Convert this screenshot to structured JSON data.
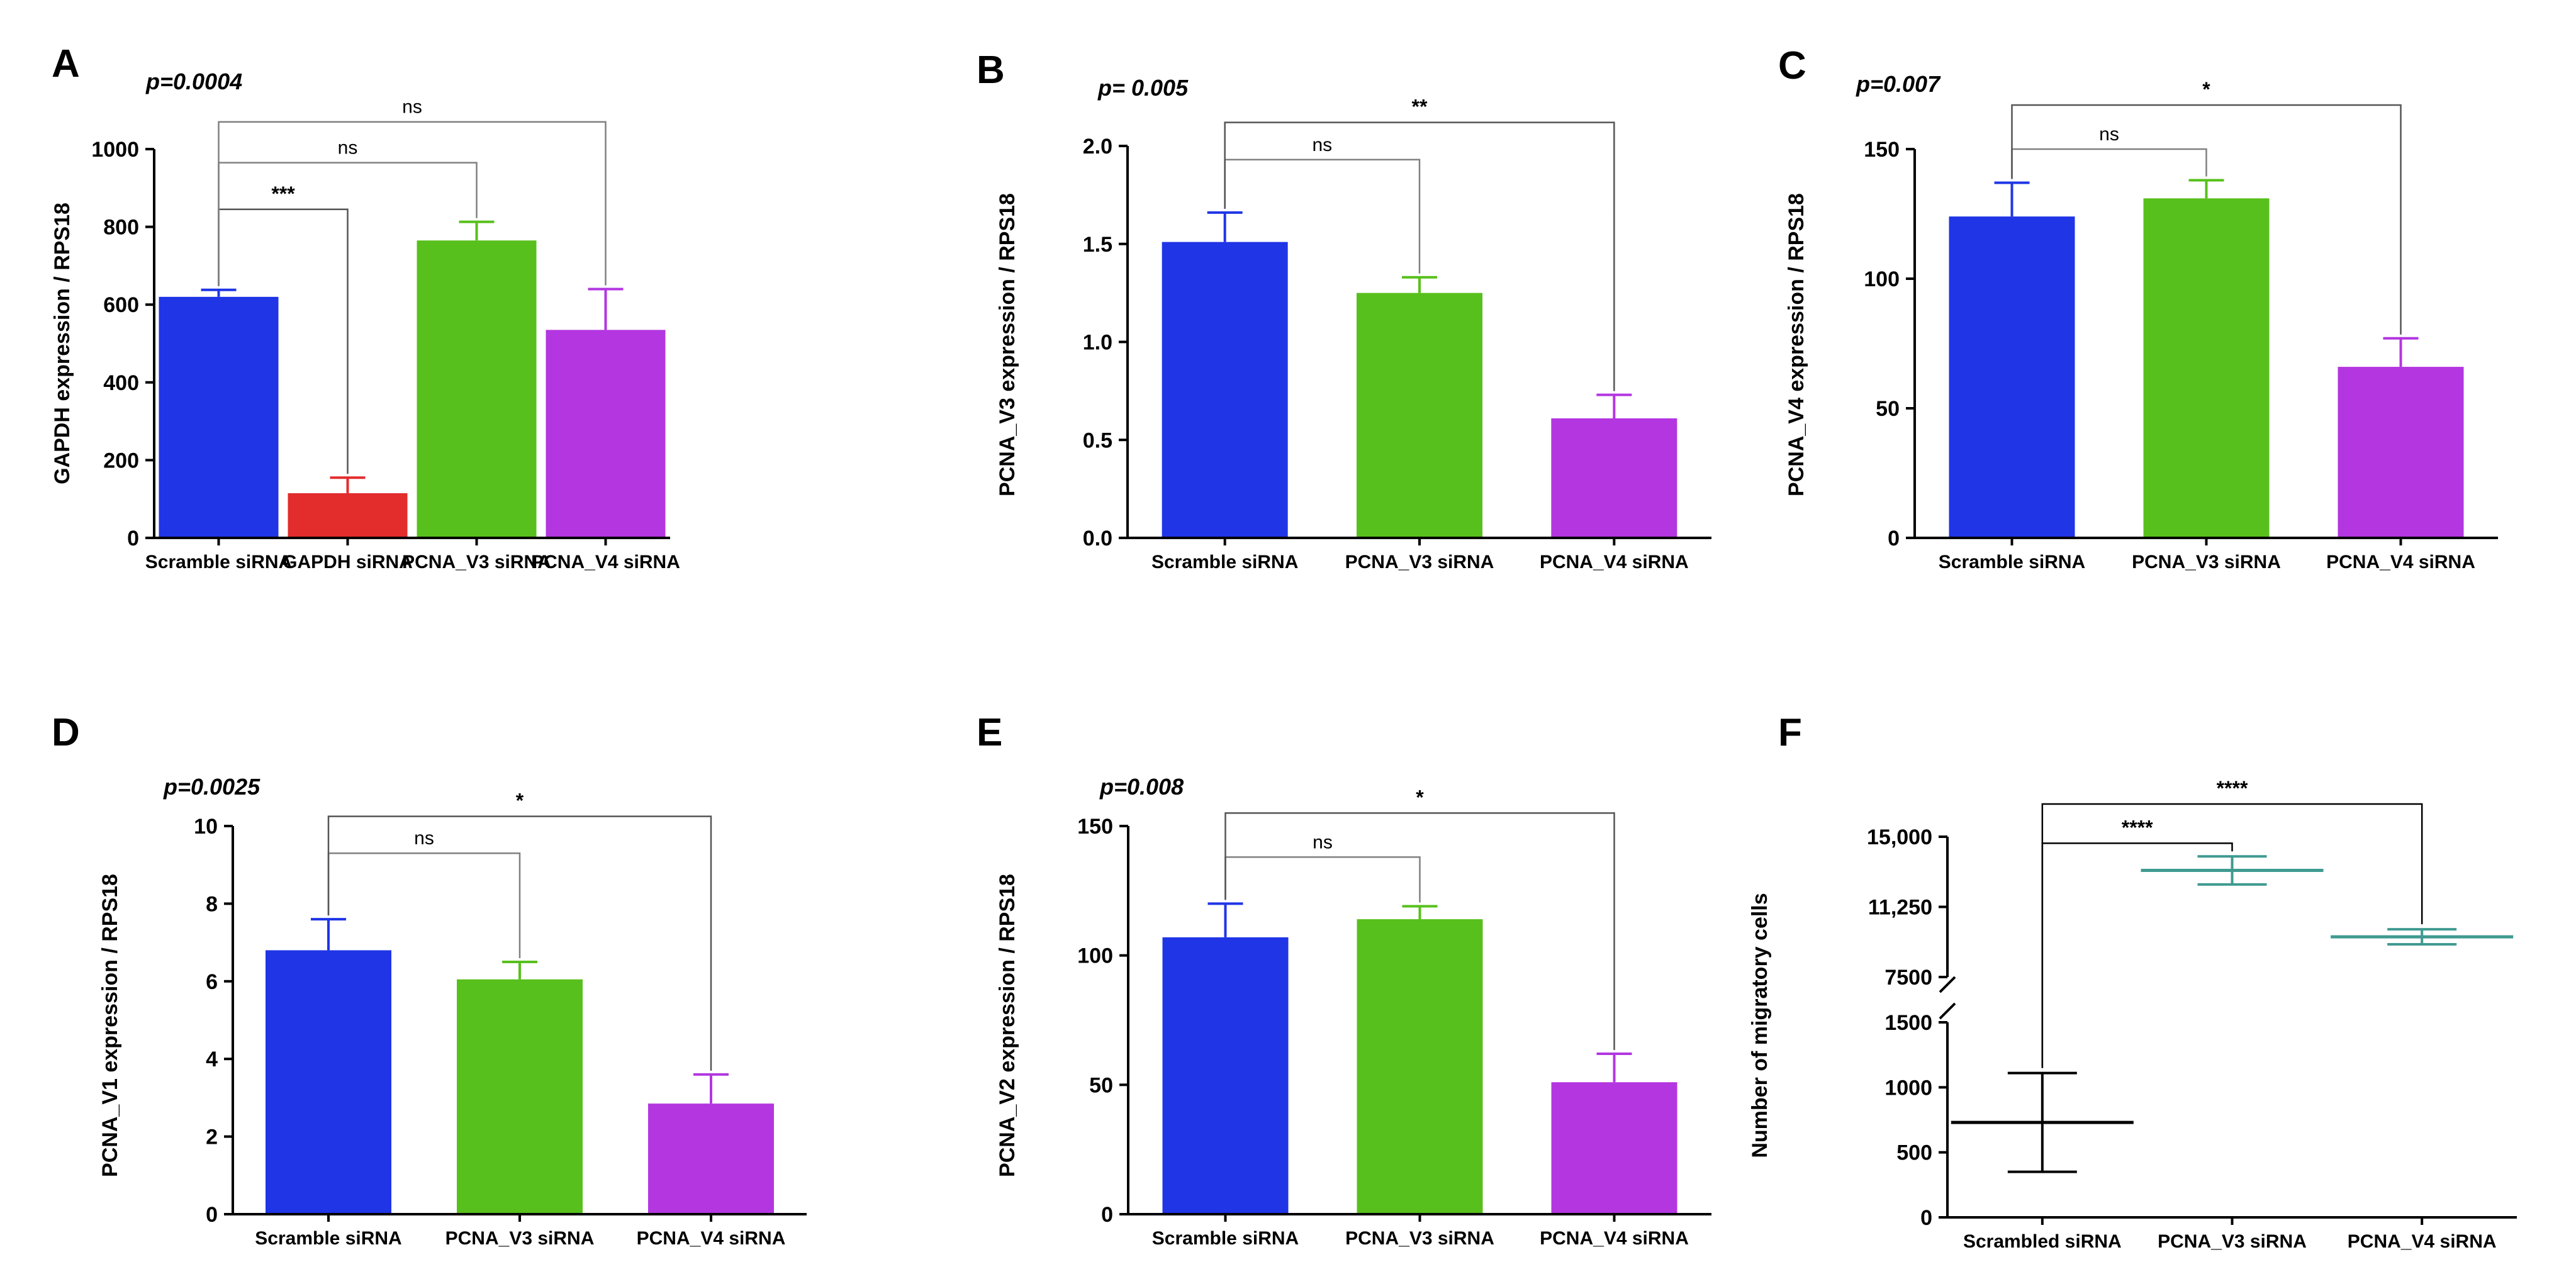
{
  "figure": {
    "description_free": true
  },
  "colors": {
    "blue": "#1f35e6",
    "red": "#e32c2c",
    "green": "#58c01c",
    "purple": "#b336e0",
    "teal": "#3f9a90",
    "axis": "#000000",
    "bracket": "#9a9a9a"
  },
  "chart_data": [
    {
      "id": "A",
      "type": "bar",
      "letter": "A",
      "pvalue": "p=0.0004",
      "ylabel": "GAPDH expression / RPS18",
      "categories": [
        "Scramble siRNA",
        "GAPDH siRNA",
        "PCNA_V3 siRNA",
        "PCNA_V4 siRNA"
      ],
      "values": [
        620,
        115,
        765,
        535
      ],
      "errors": [
        18,
        40,
        48,
        105
      ],
      "bar_colors": [
        "blue",
        "red",
        "green",
        "purple"
      ],
      "ylim": [
        0,
        1000
      ],
      "yticks": [
        0,
        200,
        400,
        600,
        800,
        1000
      ],
      "ytick_labels": [
        "0",
        "200",
        "400",
        "600",
        "800",
        "1000"
      ],
      "comparisons": [
        {
          "from": 0,
          "to": 1,
          "y": 845,
          "label": "***"
        },
        {
          "from": 0,
          "to": 2,
          "y": 965,
          "label": "ns"
        },
        {
          "from": 0,
          "to": 3,
          "y": 1070,
          "label": "ns"
        }
      ]
    },
    {
      "id": "B",
      "type": "bar",
      "letter": "B",
      "pvalue": "p= 0.005",
      "ylabel": "PCNA_V3 expression / RPS18",
      "categories": [
        "Scramble siRNA",
        "PCNA_V3 siRNA",
        "PCNA_V4 siRNA"
      ],
      "values": [
        1.51,
        1.25,
        0.61
      ],
      "errors": [
        0.15,
        0.08,
        0.12
      ],
      "bar_colors": [
        "blue",
        "green",
        "purple"
      ],
      "ylim": [
        0,
        2.0
      ],
      "yticks": [
        0,
        0.5,
        1.0,
        1.5,
        2.0
      ],
      "ytick_labels": [
        "0.0",
        "0.5",
        "1.0",
        "1.5",
        "2.0"
      ],
      "comparisons": [
        {
          "from": 0,
          "to": 1,
          "y": 1.93,
          "label": "ns"
        },
        {
          "from": 0,
          "to": 2,
          "y": 2.12,
          "label": "**"
        }
      ]
    },
    {
      "id": "C",
      "type": "bar",
      "letter": "C",
      "pvalue": "p=0.007",
      "ylabel": "PCNA_V4 expression / RPS18",
      "categories": [
        "Scramble siRNA",
        "PCNA_V3 siRNA",
        "PCNA_V4 siRNA"
      ],
      "values": [
        124,
        131,
        66
      ],
      "errors": [
        13,
        7,
        11
      ],
      "bar_colors": [
        "blue",
        "green",
        "purple"
      ],
      "ylim": [
        0,
        150
      ],
      "yticks": [
        0,
        50,
        100,
        150
      ],
      "ytick_labels": [
        "0",
        "50",
        "100",
        "150"
      ],
      "comparisons": [
        {
          "from": 0,
          "to": 1,
          "y": 150,
          "label": "ns"
        },
        {
          "from": 0,
          "to": 2,
          "y": 167,
          "label": "*"
        }
      ]
    },
    {
      "id": "D",
      "type": "bar",
      "letter": "D",
      "pvalue": "p=0.0025",
      "ylabel": "PCNA_V1 expression / RPS18",
      "categories": [
        "Scramble siRNA",
        "PCNA_V3 siRNA",
        "PCNA_V4 siRNA"
      ],
      "values": [
        6.8,
        6.05,
        2.85
      ],
      "errors": [
        0.8,
        0.45,
        0.75
      ],
      "bar_colors": [
        "blue",
        "green",
        "purple"
      ],
      "ylim": [
        0,
        10
      ],
      "yticks": [
        0,
        2,
        4,
        6,
        8,
        10
      ],
      "ytick_labels": [
        "0",
        "2",
        "4",
        "6",
        "8",
        "10"
      ],
      "comparisons": [
        {
          "from": 0,
          "to": 1,
          "y": 9.3,
          "label": "ns"
        },
        {
          "from": 0,
          "to": 2,
          "y": 10.25,
          "label": "*"
        }
      ]
    },
    {
      "id": "E",
      "type": "bar",
      "letter": "E",
      "pvalue": "p=0.008",
      "ylabel": "PCNA_V2 expression / RPS18",
      "categories": [
        "Scramble siRNA",
        "PCNA_V3 siRNA",
        "PCNA_V4 siRNA"
      ],
      "values": [
        107,
        114,
        51
      ],
      "errors": [
        13,
        5,
        11
      ],
      "bar_colors": [
        "blue",
        "green",
        "purple"
      ],
      "ylim": [
        0,
        150
      ],
      "yticks": [
        0,
        50,
        100,
        150
      ],
      "ytick_labels": [
        "0",
        "50",
        "100",
        "150"
      ],
      "comparisons": [
        {
          "from": 0,
          "to": 1,
          "y": 138,
          "label": "ns"
        },
        {
          "from": 0,
          "to": 2,
          "y": 155,
          "label": "*"
        }
      ]
    },
    {
      "id": "F",
      "type": "scatter",
      "letter": "F",
      "ylabel": "Number of migratory cells",
      "categories": [
        "Scrambled siRNA",
        "PCNA_V3 siRNA",
        "PCNA_V4 siRNA"
      ],
      "means": [
        730,
        13200,
        9650
      ],
      "lower": [
        350,
        12450,
        9250
      ],
      "upper": [
        1110,
        13950,
        10050
      ],
      "colors": [
        "axis",
        "teal",
        "teal"
      ],
      "lower_segment": {
        "ylim": [
          0,
          1500
        ],
        "yticks": [
          0,
          500,
          1000,
          1500
        ],
        "ytick_labels": [
          "0",
          "500",
          "1000",
          "1500"
        ]
      },
      "upper_segment": {
        "ylim": [
          7500,
          15000
        ],
        "yticks": [
          7500,
          11250,
          15000
        ],
        "ytick_labels": [
          "7500",
          "11,250",
          "15,000"
        ]
      },
      "comparisons": [
        {
          "from": 0,
          "to": 1,
          "y": 14650,
          "label": "****"
        },
        {
          "from": 0,
          "to": 2,
          "y": 16750,
          "label": "****"
        }
      ]
    }
  ]
}
